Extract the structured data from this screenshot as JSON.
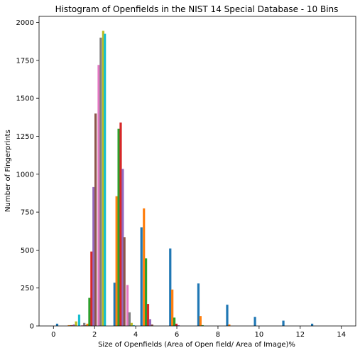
{
  "chart_data": {
    "type": "bar",
    "title": "Histogram of Openfields in the NIST 14 Special Database - 10 Bins",
    "xlabel": "Size of Openfields (Area of Open field/ Area of Image)%",
    "ylabel": "Number of Fingerprints",
    "xlim": [
      -0.7,
      14.7
    ],
    "ylim": [
      0,
      2040
    ],
    "xticks": [
      0,
      2,
      4,
      6,
      8,
      10,
      12,
      14
    ],
    "yticks": [
      0,
      250,
      500,
      750,
      1000,
      1250,
      1500,
      1750,
      2000
    ],
    "grid": false,
    "legend": "none",
    "series": [
      {
        "color": "#1f77b4",
        "x": [
          0.18,
          1.55,
          2.97,
          4.28,
          5.68,
          7.05,
          8.45,
          9.8,
          11.18,
          12.58
        ],
        "values": [
          15,
          5,
          285,
          650,
          510,
          280,
          140,
          60,
          35,
          15
        ]
      },
      {
        "color": "#ff7f0e",
        "x": [
          0.75,
          1.65,
          3.07,
          4.4,
          5.78,
          7.15,
          8.55
        ],
        "values": [
          5,
          15,
          855,
          775,
          240,
          65,
          10
        ]
      },
      {
        "color": "#2ca02c",
        "x": [
          0.85,
          1.75,
          3.17,
          4.5,
          5.88,
          7.25
        ],
        "values": [
          5,
          185,
          1300,
          445,
          55,
          5
        ]
      },
      {
        "color": "#d62728",
        "x": [
          0.9,
          1.85,
          3.27,
          4.6,
          5.98
        ],
        "values": [
          5,
          490,
          1340,
          145,
          15
        ]
      },
      {
        "color": "#9467bd",
        "x": [
          1.0,
          1.95,
          3.37,
          4.7,
          6.08
        ],
        "values": [
          10,
          915,
          1035,
          45,
          5
        ]
      },
      {
        "color": "#8c564b",
        "x": [
          1.55,
          2.05,
          3.45,
          4.8
        ],
        "values": [
          5,
          1400,
          585,
          10
        ]
      },
      {
        "color": "#e377c2",
        "x": [
          1.4,
          2.2,
          3.6
        ],
        "values": [
          5,
          1720,
          270
        ]
      },
      {
        "color": "#7f7f7f",
        "x": [
          1.5,
          2.3,
          3.7
        ],
        "values": [
          20,
          1900,
          90
        ]
      },
      {
        "color": "#bcbd22",
        "x": [
          1.1,
          2.42,
          3.8
        ],
        "values": [
          30,
          1945,
          20
        ]
      },
      {
        "color": "#17becf",
        "x": [
          1.25,
          2.5,
          3.9
        ],
        "values": [
          75,
          1925,
          5
        ]
      }
    ]
  }
}
